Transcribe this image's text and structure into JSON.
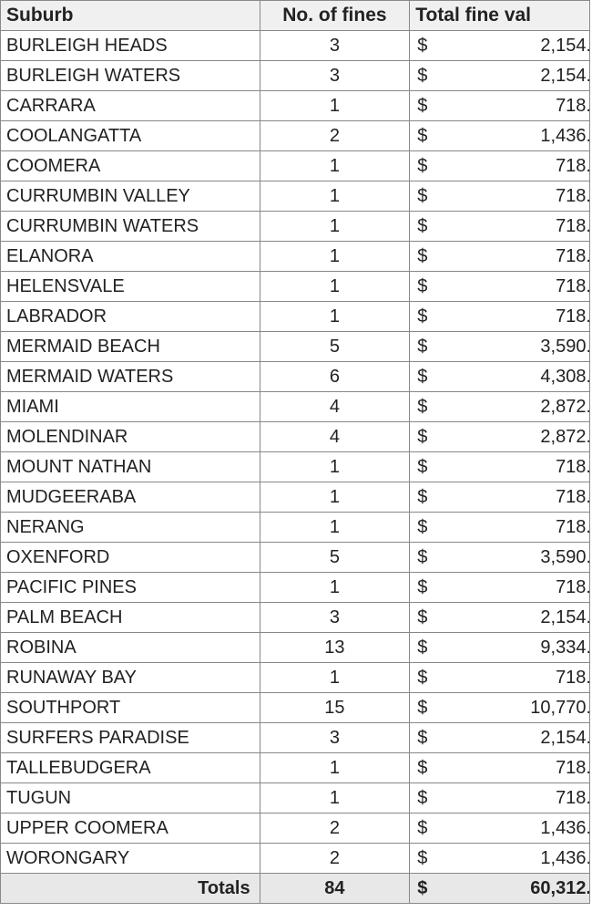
{
  "table": {
    "headers": {
      "suburb": "Suburb",
      "fines": "No. of fines",
      "value": "Total fine val"
    },
    "currency_symbol": "$",
    "rows": [
      {
        "suburb": "BURLEIGH HEADS",
        "fines": "3",
        "value": "2,154."
      },
      {
        "suburb": "BURLEIGH WATERS",
        "fines": "3",
        "value": "2,154."
      },
      {
        "suburb": "CARRARA",
        "fines": "1",
        "value": "718."
      },
      {
        "suburb": "COOLANGATTA",
        "fines": "2",
        "value": "1,436."
      },
      {
        "suburb": "COOMERA",
        "fines": "1",
        "value": "718."
      },
      {
        "suburb": "CURRUMBIN VALLEY",
        "fines": "1",
        "value": "718."
      },
      {
        "suburb": "CURRUMBIN WATERS",
        "fines": "1",
        "value": "718."
      },
      {
        "suburb": "ELANORA",
        "fines": "1",
        "value": "718."
      },
      {
        "suburb": "HELENSVALE",
        "fines": "1",
        "value": "718."
      },
      {
        "suburb": "LABRADOR",
        "fines": "1",
        "value": "718."
      },
      {
        "suburb": "MERMAID BEACH",
        "fines": "5",
        "value": "3,590."
      },
      {
        "suburb": "MERMAID WATERS",
        "fines": "6",
        "value": "4,308."
      },
      {
        "suburb": "MIAMI",
        "fines": "4",
        "value": "2,872."
      },
      {
        "suburb": "MOLENDINAR",
        "fines": "4",
        "value": "2,872."
      },
      {
        "suburb": "MOUNT NATHAN",
        "fines": "1",
        "value": "718."
      },
      {
        "suburb": "MUDGEERABA",
        "fines": "1",
        "value": "718."
      },
      {
        "suburb": "NERANG",
        "fines": "1",
        "value": "718."
      },
      {
        "suburb": "OXENFORD",
        "fines": "5",
        "value": "3,590."
      },
      {
        "suburb": "PACIFIC PINES",
        "fines": "1",
        "value": "718."
      },
      {
        "suburb": "PALM BEACH",
        "fines": "3",
        "value": "2,154."
      },
      {
        "suburb": "ROBINA",
        "fines": "13",
        "value": "9,334."
      },
      {
        "suburb": "RUNAWAY BAY",
        "fines": "1",
        "value": "718."
      },
      {
        "suburb": "SOUTHPORT",
        "fines": "15",
        "value": "10,770."
      },
      {
        "suburb": "SURFERS PARADISE",
        "fines": "3",
        "value": "2,154."
      },
      {
        "suburb": "TALLEBUDGERA",
        "fines": "1",
        "value": "718."
      },
      {
        "suburb": "TUGUN",
        "fines": "1",
        "value": "718."
      },
      {
        "suburb": "UPPER COOMERA",
        "fines": "2",
        "value": "1,436."
      },
      {
        "suburb": "WORONGARY",
        "fines": "2",
        "value": "1,436."
      }
    ],
    "totals": {
      "label": "Totals",
      "fines": "84",
      "value": "60,312."
    }
  }
}
